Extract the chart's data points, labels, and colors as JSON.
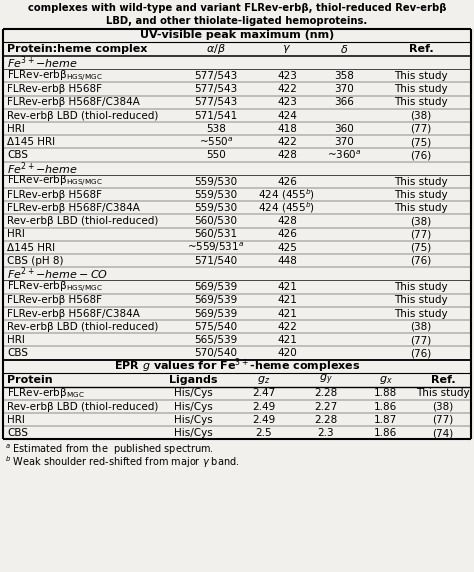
{
  "title_lines": [
    "complexes with wild-type and variant FLRev-erbβ, thiol-reduced Rev-erbβ",
    "LBD, and other thiolate-ligated hemoproteins."
  ],
  "section1_header": "UV-visible peak maximum (nm)",
  "fe3_header_text": "Fe$^{3+}$-heme",
  "fe3_rows": [
    [
      "FLRev-erbβ$_{HGS/MGC}$",
      "577/543",
      "423",
      "358",
      "This study"
    ],
    [
      "FLRev-erbβ H568F",
      "577/543",
      "422",
      "370",
      "This study"
    ],
    [
      "FLRev-erbβ H568F/C384A",
      "577/543",
      "423",
      "366",
      "This study"
    ],
    [
      "Rev-erbβ LBD (thiol-reduced)",
      "571/541",
      "424",
      "",
      "(38)"
    ],
    [
      "HRI",
      "538",
      "418",
      "360",
      "(77)"
    ],
    [
      "Δ145 HRI",
      "~550$^{a}$",
      "422",
      "370",
      "(75)"
    ],
    [
      "CBS",
      "550",
      "428",
      "~360$^{a}$",
      "(76)"
    ]
  ],
  "fe2_header_text": "Fe$^{2+}$-heme",
  "fe2_rows": [
    [
      "FLRev-erbβ$_{HGS/MGC}$",
      "559/530",
      "426",
      "",
      "This study"
    ],
    [
      "FLRev-erbβ H568F",
      "559/530",
      "424 (455$^{b}$)",
      "",
      "This study"
    ],
    [
      "FLRev-erbβ H568F/C384A",
      "559/530",
      "424 (455$^{b}$)",
      "",
      "This study"
    ],
    [
      "Rev-erbβ LBD (thiol-reduced)",
      "560/530",
      "428",
      "",
      "(38)"
    ],
    [
      "HRI",
      "560/531",
      "426",
      "",
      "(77)"
    ],
    [
      "Δ145 HRI",
      "~559/531$^{a}$",
      "425",
      "",
      "(75)"
    ],
    [
      "CBS (pH 8)",
      "571/540",
      "448",
      "",
      "(76)"
    ]
  ],
  "fe2co_header_text": "Fe$^{2+}$-heme-CO",
  "fe2co_rows": [
    [
      "FLRev-erbβ$_{HGS/MGC}$",
      "569/539",
      "421",
      "",
      "This study"
    ],
    [
      "FLRev-erbβ H568F",
      "569/539",
      "421",
      "",
      "This study"
    ],
    [
      "FLRev-erbβ H568F/C384A",
      "569/539",
      "421",
      "",
      "This study"
    ],
    [
      "Rev-erbβ LBD (thiol-reduced)",
      "575/540",
      "422",
      "",
      "(38)"
    ],
    [
      "HRI",
      "565/539",
      "421",
      "",
      "(77)"
    ],
    [
      "CBS",
      "570/540",
      "420",
      "",
      "(76)"
    ]
  ],
  "section2_header": "EPR $g$ values for Fe$^{3+}$-heme complexes",
  "epr_rows": [
    [
      "FLRev-erbβ$_{MGC}$",
      "His/Cys",
      "2.47",
      "2.28",
      "1.88",
      "This study"
    ],
    [
      "Rev-erbβ LBD (thiol-reduced)",
      "His/Cys",
      "2.49",
      "2.27",
      "1.86",
      "(38)"
    ],
    [
      "HRI",
      "His/Cys",
      "2.49",
      "2.28",
      "1.87",
      "(77)"
    ],
    [
      "CBS",
      "His/Cys",
      "2.5",
      "2.3",
      "1.86",
      "(74)"
    ]
  ],
  "footnote_a": "$^{a}$ Estimated from the  published spectrum.",
  "footnote_b": "$^{b}$ Weak shoulder red-shifted from major $\\gamma$ band.",
  "bg_color": "#f2f0ec"
}
